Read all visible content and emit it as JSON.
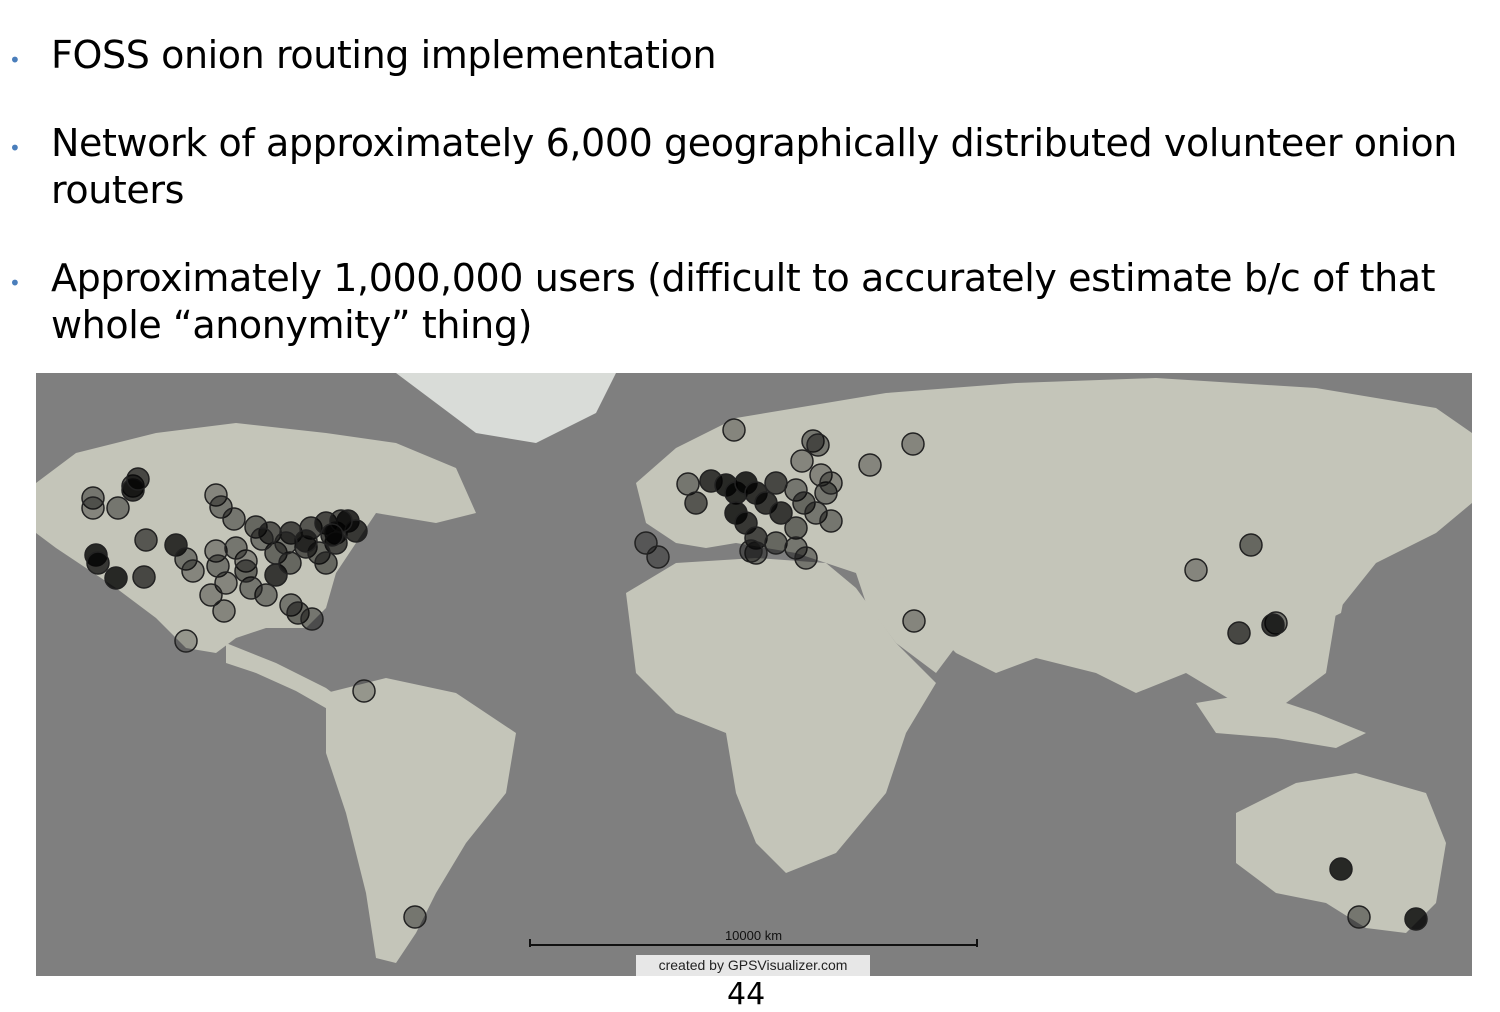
{
  "bullets": [
    {
      "text": "FOSS onion routing implementation"
    },
    {
      "text": "Network of approximately 6,000 geographically distributed volunteer onion routers"
    },
    {
      "text": "Approximately 1,000,000 users (difficult to accurately estimate b/c of that whole “anonymity” thing)"
    }
  ],
  "map": {
    "scale_label": "10000 km",
    "credit": "created by GPSVisualizer.com"
  },
  "page_number": "44",
  "colors": {
    "bullet": "#4a7ebb",
    "ocean": "#7f7f7f",
    "land": "#c3c3b8"
  }
}
